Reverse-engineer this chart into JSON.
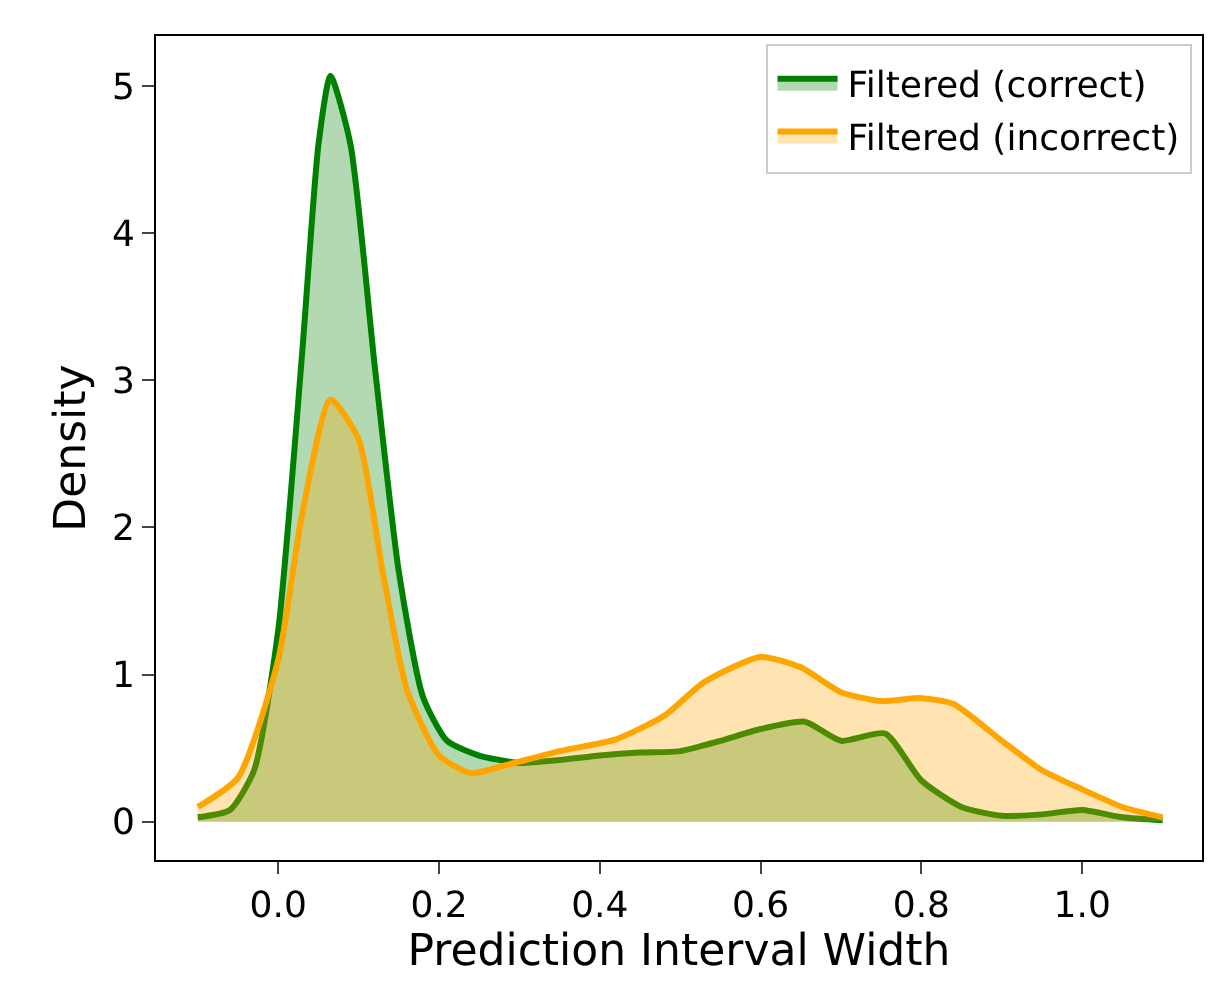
{
  "chart_data": {
    "type": "area",
    "xlabel": "Prediction Interval Width",
    "ylabel": "Density",
    "xlim": [
      -0.152,
      1.149
    ],
    "ylim": [
      -0.26,
      5.34
    ],
    "xticks": [
      {
        "value": 0,
        "label": "0.0"
      },
      0.2,
      0.4,
      0.6,
      0.8,
      {
        "value": 1,
        "label": "1.0"
      }
    ],
    "yticks": [
      0,
      1,
      2,
      3,
      4,
      5
    ],
    "legend": "top right",
    "series": [
      {
        "name": "Filtered (correct)",
        "color": "#008000",
        "x": [
          -0.1,
          -0.06,
          -0.03,
          0.0,
          0.03,
          0.05,
          0.065,
          0.09,
          0.12,
          0.15,
          0.18,
          0.21,
          0.25,
          0.3,
          0.35,
          0.4,
          0.45,
          0.5,
          0.55,
          0.6,
          0.655,
          0.7,
          0.755,
          0.8,
          0.85,
          0.9,
          0.95,
          1.0,
          1.05,
          1.1
        ],
        "values": [
          0.03,
          0.08,
          0.35,
          1.3,
          3.2,
          4.6,
          5.07,
          4.6,
          3.1,
          1.7,
          0.85,
          0.55,
          0.45,
          0.4,
          0.42,
          0.45,
          0.47,
          0.48,
          0.55,
          0.63,
          0.68,
          0.55,
          0.6,
          0.28,
          0.1,
          0.04,
          0.05,
          0.08,
          0.03,
          0.01
        ]
      },
      {
        "name": "Filtered (incorrect)",
        "color": "#ffa500",
        "x": [
          -0.1,
          -0.05,
          0.0,
          0.03,
          0.065,
          0.1,
          0.13,
          0.16,
          0.2,
          0.24,
          0.28,
          0.35,
          0.42,
          0.48,
          0.53,
          0.6,
          0.65,
          0.7,
          0.75,
          0.8,
          0.84,
          0.9,
          0.95,
          1.0,
          1.05,
          1.1
        ],
        "values": [
          0.1,
          0.3,
          1.1,
          2.1,
          2.87,
          2.6,
          1.7,
          0.9,
          0.45,
          0.33,
          0.38,
          0.48,
          0.56,
          0.72,
          0.95,
          1.12,
          1.05,
          0.88,
          0.82,
          0.84,
          0.8,
          0.55,
          0.35,
          0.22,
          0.1,
          0.03
        ]
      }
    ]
  }
}
